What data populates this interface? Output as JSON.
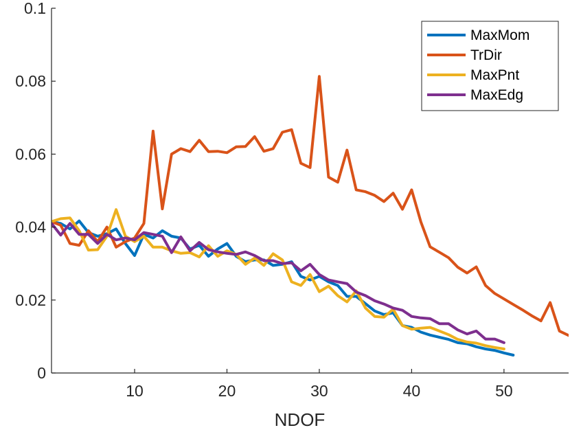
{
  "chart_data": {
    "type": "line",
    "title": "",
    "xlabel": "NDOF",
    "ylabel": "",
    "xlim": [
      1,
      57
    ],
    "ylim": [
      0,
      0.1
    ],
    "xticks": [
      10,
      20,
      30,
      40,
      50
    ],
    "yticks": [
      0,
      0.02,
      0.04,
      0.06,
      0.08,
      0.1
    ],
    "xtick_labels": [
      "10",
      "20",
      "30",
      "40",
      "50"
    ],
    "ytick_labels": [
      "0",
      "0.02",
      "0.04",
      "0.06",
      "0.08",
      "0.1"
    ],
    "legend_position": "top-right",
    "grid": false,
    "series": [
      {
        "name": "MaxMom",
        "color": "#0072BD",
        "x": [
          1,
          2,
          3,
          4,
          5,
          6,
          7,
          8,
          9,
          10,
          11,
          12,
          13,
          14,
          15,
          16,
          17,
          18,
          19,
          20,
          21,
          22,
          23,
          24,
          25,
          26,
          27,
          28,
          29,
          30,
          31,
          32,
          33,
          34,
          35,
          36,
          37,
          38,
          39,
          40,
          41,
          42,
          43,
          44,
          45,
          46,
          47,
          48,
          49,
          50,
          51
        ],
        "values": [
          0.0415,
          0.041,
          0.0395,
          0.0417,
          0.0385,
          0.0375,
          0.0382,
          0.0395,
          0.0355,
          0.0322,
          0.038,
          0.037,
          0.039,
          0.0375,
          0.037,
          0.034,
          0.035,
          0.032,
          0.034,
          0.0355,
          0.032,
          0.0305,
          0.031,
          0.031,
          0.0295,
          0.0298,
          0.0305,
          0.0265,
          0.0255,
          0.0265,
          0.025,
          0.024,
          0.021,
          0.021,
          0.019,
          0.017,
          0.016,
          0.0165,
          0.013,
          0.0125,
          0.0112,
          0.0104,
          0.0098,
          0.0092,
          0.0083,
          0.008,
          0.0072,
          0.0066,
          0.0062,
          0.0055,
          0.0049
        ]
      },
      {
        "name": "TrDir",
        "color": "#D95319",
        "x": [
          1,
          2,
          3,
          4,
          5,
          6,
          7,
          8,
          9,
          10,
          11,
          12,
          13,
          14,
          15,
          16,
          17,
          18,
          19,
          20,
          21,
          22,
          23,
          24,
          25,
          26,
          27,
          28,
          29,
          30,
          31,
          32,
          33,
          34,
          35,
          36,
          37,
          38,
          39,
          40,
          41,
          42,
          43,
          44,
          45,
          46,
          47,
          48,
          49,
          50,
          51,
          52,
          53,
          54,
          55,
          56,
          57
        ],
        "values": [
          0.0415,
          0.0405,
          0.0355,
          0.035,
          0.039,
          0.036,
          0.04,
          0.0345,
          0.036,
          0.037,
          0.041,
          0.0663,
          0.045,
          0.06,
          0.0615,
          0.0607,
          0.0638,
          0.0607,
          0.0608,
          0.0604,
          0.062,
          0.0621,
          0.0648,
          0.0608,
          0.0615,
          0.066,
          0.0667,
          0.0575,
          0.0563,
          0.0813,
          0.0537,
          0.0523,
          0.0611,
          0.0502,
          0.0497,
          0.0487,
          0.047,
          0.0493,
          0.0449,
          0.0502,
          0.0414,
          0.0346,
          0.0331,
          0.0316,
          0.029,
          0.0274,
          0.0291,
          0.024,
          0.0218,
          0.0203,
          0.0188,
          0.0173,
          0.0157,
          0.0143,
          0.0193,
          0.0115,
          0.0103
        ]
      },
      {
        "name": "MaxPnt",
        "color": "#EDB120",
        "x": [
          1,
          2,
          3,
          4,
          5,
          6,
          7,
          8,
          9,
          10,
          11,
          12,
          13,
          14,
          15,
          16,
          17,
          18,
          19,
          20,
          21,
          22,
          23,
          24,
          25,
          26,
          27,
          28,
          29,
          30,
          31,
          32,
          33,
          34,
          35,
          36,
          37,
          38,
          39,
          40,
          41,
          42,
          43,
          44,
          45,
          46,
          47,
          48,
          49,
          50
        ],
        "values": [
          0.0415,
          0.0423,
          0.0425,
          0.039,
          0.0337,
          0.0338,
          0.0375,
          0.0448,
          0.0375,
          0.036,
          0.0375,
          0.0345,
          0.0345,
          0.0335,
          0.0328,
          0.033,
          0.0318,
          0.0349,
          0.032,
          0.0335,
          0.0325,
          0.0298,
          0.0315,
          0.0295,
          0.0327,
          0.031,
          0.025,
          0.024,
          0.027,
          0.0223,
          0.0238,
          0.0212,
          0.0195,
          0.0225,
          0.0178,
          0.0155,
          0.0153,
          0.0175,
          0.013,
          0.012,
          0.0123,
          0.0125,
          0.0115,
          0.0105,
          0.0092,
          0.0085,
          0.0082,
          0.0075,
          0.007,
          0.0066
        ]
      },
      {
        "name": "MaxEdg",
        "color": "#7E2F8E",
        "x": [
          1,
          2,
          3,
          4,
          5,
          6,
          7,
          8,
          9,
          10,
          11,
          12,
          13,
          14,
          15,
          16,
          17,
          18,
          19,
          20,
          21,
          22,
          23,
          24,
          25,
          26,
          27,
          28,
          29,
          30,
          31,
          32,
          33,
          34,
          35,
          36,
          37,
          38,
          39,
          40,
          41,
          42,
          43,
          44,
          45,
          46,
          47,
          48,
          49,
          50
        ],
        "values": [
          0.041,
          0.0378,
          0.041,
          0.038,
          0.038,
          0.0355,
          0.038,
          0.0365,
          0.037,
          0.0365,
          0.0385,
          0.038,
          0.0375,
          0.033,
          0.0373,
          0.0335,
          0.0358,
          0.0338,
          0.0332,
          0.0328,
          0.0325,
          0.0332,
          0.0322,
          0.0308,
          0.0308,
          0.03,
          0.0302,
          0.028,
          0.0298,
          0.027,
          0.0255,
          0.025,
          0.0245,
          0.0222,
          0.0212,
          0.0198,
          0.0189,
          0.0178,
          0.0172,
          0.0155,
          0.0151,
          0.0149,
          0.0135,
          0.0135,
          0.0118,
          0.0107,
          0.0115,
          0.0093,
          0.0093,
          0.0083
        ]
      }
    ]
  }
}
